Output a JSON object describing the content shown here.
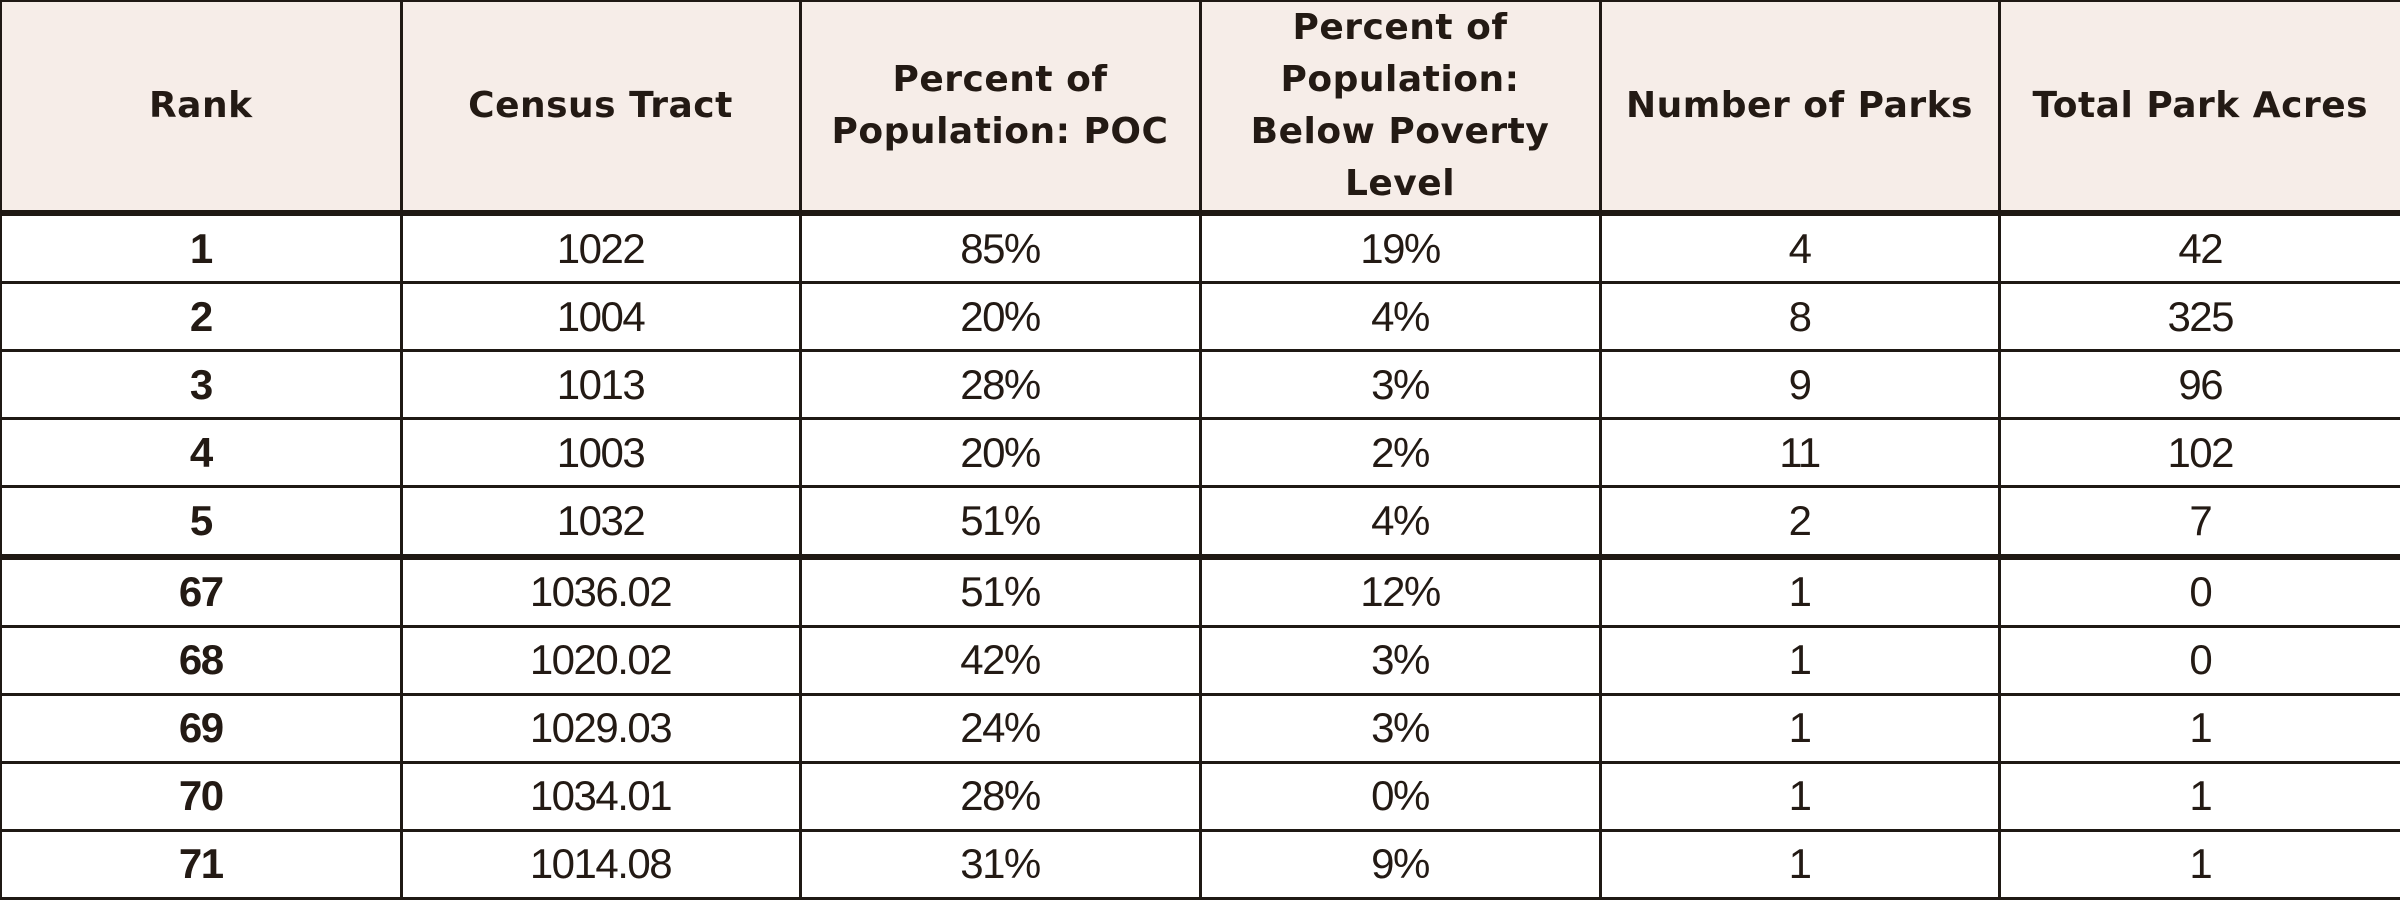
{
  "table": {
    "headers": [
      "Rank",
      "Census Tract",
      "Percent of Population: POC",
      "Percent of Population: Below Poverty Level",
      "Number of Parks",
      "Total Park Acres"
    ],
    "rows": [
      [
        "1",
        "1022",
        "85%",
        "19%",
        "4",
        "42"
      ],
      [
        "2",
        "1004",
        "20%",
        "4%",
        "8",
        "325"
      ],
      [
        "3",
        "1013",
        "28%",
        "3%",
        "9",
        "96"
      ],
      [
        "4",
        "1003",
        "20%",
        "2%",
        "11",
        "102"
      ],
      [
        "5",
        "1032",
        "51%",
        "4%",
        "2",
        "7"
      ],
      [
        "67",
        "1036.02",
        "51%",
        "12%",
        "1",
        "0"
      ],
      [
        "68",
        "1020.02",
        "42%",
        "3%",
        "1",
        "0"
      ],
      [
        "69",
        "1029.03",
        "24%",
        "3%",
        "1",
        "1"
      ],
      [
        "70",
        "1034.01",
        "28%",
        "0%",
        "1",
        "1"
      ],
      [
        "71",
        "1014.08",
        "31%",
        "9%",
        "1",
        "1"
      ]
    ]
  }
}
